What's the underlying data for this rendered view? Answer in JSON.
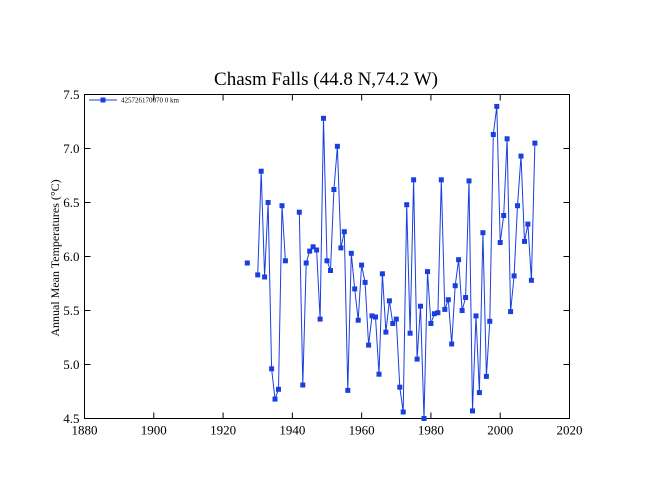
{
  "chart_data": {
    "type": "line",
    "title": "Chasm Falls (44.8 N,74.2 W)",
    "xlabel": "",
    "ylabel": "Annual Mean Temperatures (°C)",
    "xlim": [
      1880,
      2020
    ],
    "ylim": [
      4.5,
      7.5
    ],
    "xticks": [
      1880,
      1900,
      1920,
      1940,
      1960,
      1980,
      2000,
      2020
    ],
    "yticks": [
      4.5,
      5.0,
      5.5,
      6.0,
      6.5,
      7.0,
      7.5
    ],
    "legend_position": "top-left",
    "series_color": "#1a3fe0",
    "series": [
      {
        "name": "425726170070  0 km",
        "points": [
          [
            1927,
            5.94
          ],
          [
            1930,
            5.83
          ],
          [
            1931,
            6.79
          ],
          [
            1932,
            5.81
          ],
          [
            1933,
            6.5
          ],
          [
            1934,
            4.96
          ],
          [
            1935,
            4.68
          ],
          [
            1936,
            4.77
          ],
          [
            1937,
            6.47
          ],
          [
            1938,
            5.96
          ],
          [
            1942,
            6.41
          ],
          [
            1943,
            4.81
          ],
          [
            1944,
            5.94
          ],
          [
            1945,
            6.05
          ],
          [
            1946,
            6.09
          ],
          [
            1947,
            6.06
          ],
          [
            1948,
            5.42
          ],
          [
            1949,
            7.28
          ],
          [
            1950,
            5.96
          ],
          [
            1951,
            5.87
          ],
          [
            1952,
            6.62
          ],
          [
            1953,
            7.02
          ],
          [
            1954,
            6.08
          ],
          [
            1955,
            6.23
          ],
          [
            1956,
            4.76
          ],
          [
            1957,
            6.03
          ],
          [
            1958,
            5.7
          ],
          [
            1959,
            5.41
          ],
          [
            1960,
            5.92
          ],
          [
            1961,
            5.76
          ],
          [
            1962,
            5.18
          ],
          [
            1963,
            5.45
          ],
          [
            1964,
            5.44
          ],
          [
            1965,
            4.91
          ],
          [
            1966,
            5.84
          ],
          [
            1967,
            5.3
          ],
          [
            1968,
            5.59
          ],
          [
            1969,
            5.38
          ],
          [
            1970,
            5.42
          ],
          [
            1971,
            4.79
          ],
          [
            1972,
            4.56
          ],
          [
            1973,
            6.48
          ],
          [
            1974,
            5.29
          ],
          [
            1975,
            6.71
          ],
          [
            1976,
            5.05
          ],
          [
            1977,
            5.54
          ],
          [
            1978,
            4.5
          ],
          [
            1979,
            5.86
          ],
          [
            1980,
            5.38
          ],
          [
            1981,
            5.47
          ],
          [
            1982,
            5.48
          ],
          [
            1983,
            6.71
          ],
          [
            1984,
            5.51
          ],
          [
            1985,
            5.6
          ],
          [
            1986,
            5.19
          ],
          [
            1987,
            5.73
          ],
          [
            1988,
            5.97
          ],
          [
            1989,
            5.5
          ],
          [
            1990,
            5.62
          ],
          [
            1991,
            6.7
          ],
          [
            1992,
            4.57
          ],
          [
            1993,
            5.45
          ],
          [
            1994,
            4.74
          ],
          [
            1995,
            6.22
          ],
          [
            1996,
            4.89
          ],
          [
            1997,
            5.4
          ],
          [
            1998,
            7.13
          ],
          [
            1999,
            7.39
          ],
          [
            2000,
            6.13
          ],
          [
            2001,
            6.38
          ],
          [
            2002,
            7.09
          ],
          [
            2003,
            5.49
          ],
          [
            2004,
            5.82
          ],
          [
            2005,
            6.47
          ],
          [
            2006,
            6.93
          ],
          [
            2007,
            6.14
          ],
          [
            2008,
            6.3
          ],
          [
            2009,
            5.78
          ],
          [
            2010,
            7.05
          ]
        ]
      }
    ]
  }
}
